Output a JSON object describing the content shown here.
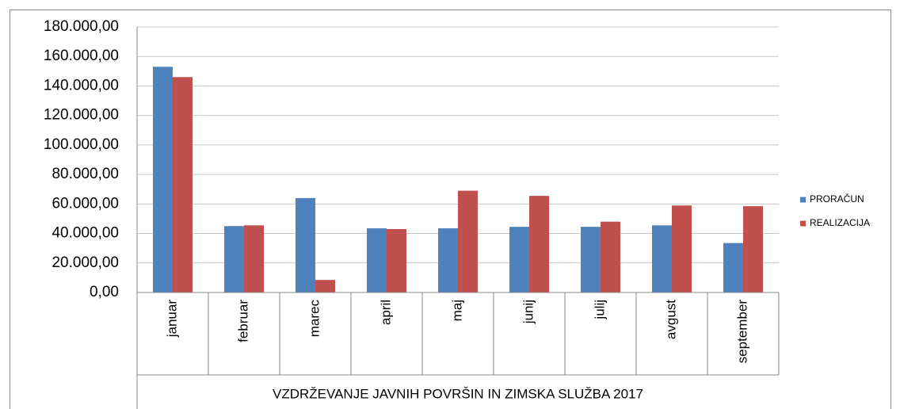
{
  "chart_data": {
    "type": "bar",
    "xlabel": "VZDRŽEVANJE JAVNIH POVRŠIN IN ZIMSKA SLUŽBA 2017",
    "categories": [
      "januar",
      "februar",
      "marec",
      "april",
      "maj",
      "junij",
      "julij",
      "avgust",
      "september"
    ],
    "series": [
      {
        "name": "PRORAČUN",
        "color": "#4f81bd",
        "values": [
          153000,
          45000,
          64000,
          43500,
          43500,
          44500,
          44500,
          45500,
          33500
        ]
      },
      {
        "name": "REALIZACIJA",
        "color": "#c0504d",
        "values": [
          146000,
          45500,
          8500,
          43000,
          69000,
          65500,
          48000,
          59000,
          58500
        ]
      }
    ],
    "ylim": [
      0,
      180000
    ],
    "yticks": [
      {
        "value": 0,
        "label": "0,00"
      },
      {
        "value": 20000,
        "label": "20.000,00"
      },
      {
        "value": 40000,
        "label": "40.000,00"
      },
      {
        "value": 60000,
        "label": "60.000,00"
      },
      {
        "value": 80000,
        "label": "80.000,00"
      },
      {
        "value": 100000,
        "label": "100.000,00"
      },
      {
        "value": 120000,
        "label": "120.000,00"
      },
      {
        "value": 140000,
        "label": "140.000,00"
      },
      {
        "value": 160000,
        "label": "160.000,00"
      },
      {
        "value": 180000,
        "label": "180.000,00"
      }
    ],
    "grid": true,
    "legend": "right"
  }
}
